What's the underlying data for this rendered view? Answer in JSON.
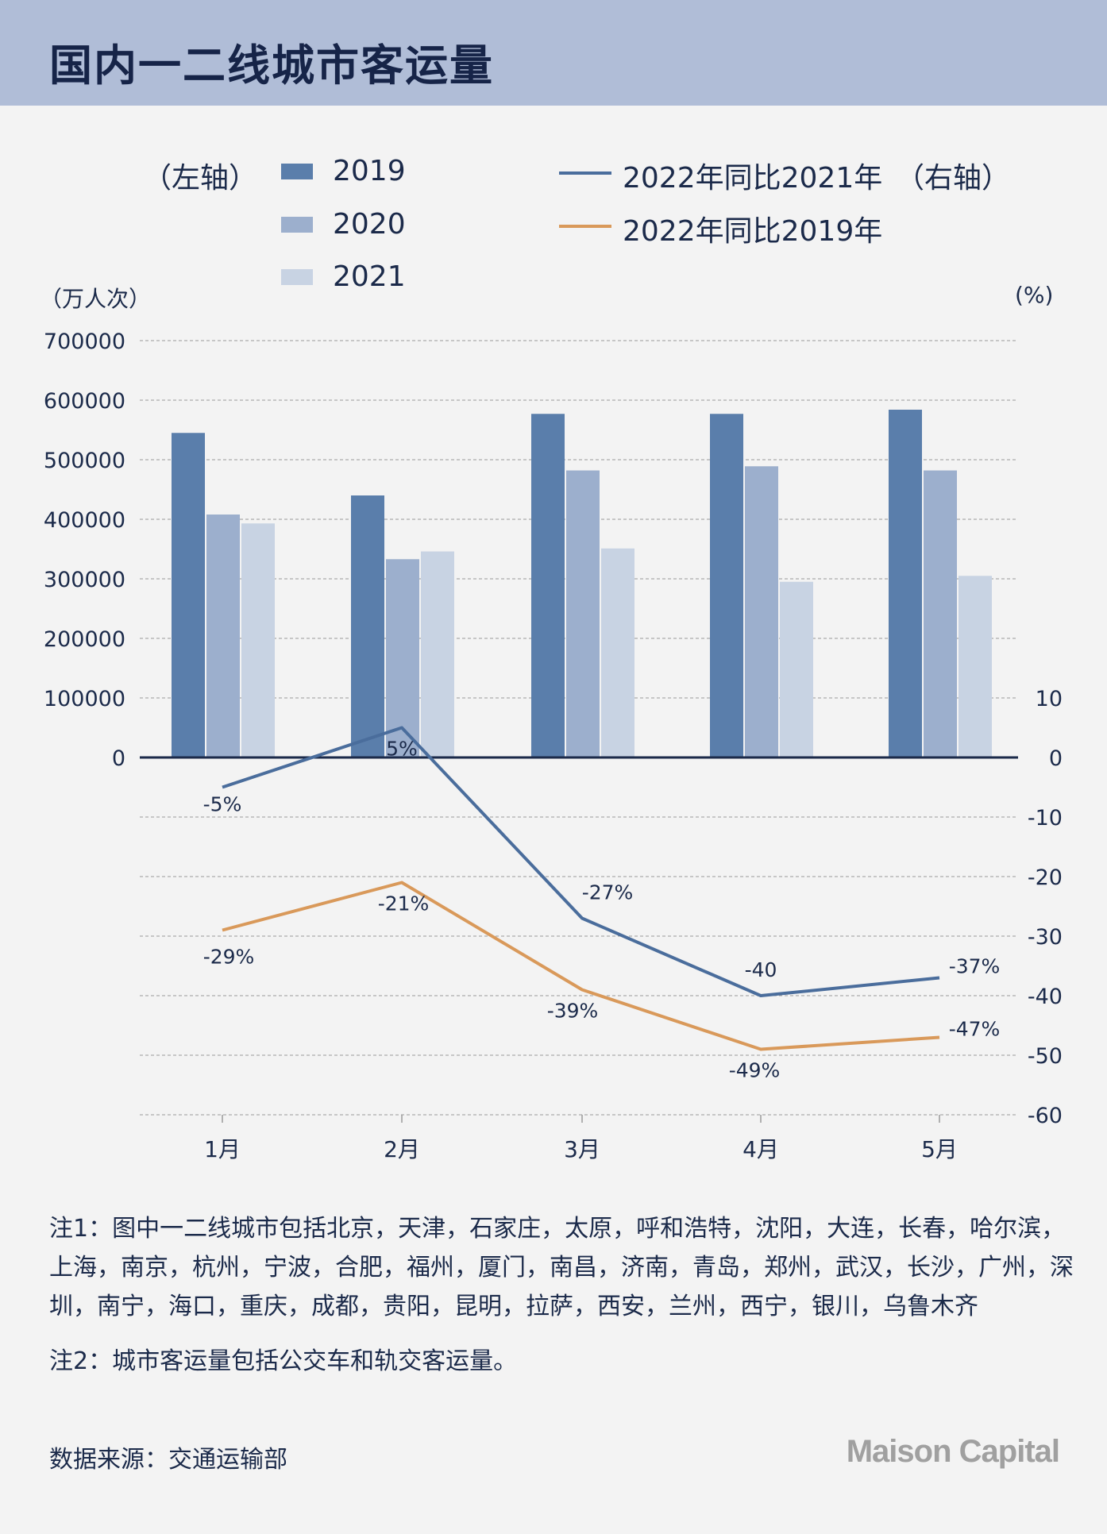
{
  "title": "国内一二线城市客运量",
  "legend": {
    "left_axis_label": "（左轴）",
    "right_axis_label": "（右轴）",
    "bars": [
      {
        "label": "2019",
        "color": "#5a7eab"
      },
      {
        "label": "2020",
        "color": "#9cafcd"
      },
      {
        "label": "2021",
        "color": "#c8d3e3"
      }
    ],
    "lines": [
      {
        "label": "2022年同比2021年",
        "color": "#4a6d9c"
      },
      {
        "label": "2022年同比2019年",
        "color": "#d9995a"
      }
    ]
  },
  "units": {
    "left": "（万人次）",
    "right": "(%)"
  },
  "chart_data": {
    "type": "bar",
    "categories": [
      "1月",
      "2月",
      "3月",
      "4月",
      "5月"
    ],
    "series": [
      {
        "name": "2019",
        "axis": "left",
        "type": "bar",
        "values": [
          545000,
          440000,
          577000,
          577000,
          584000
        ]
      },
      {
        "name": "2020",
        "axis": "left",
        "type": "bar",
        "values": [
          408000,
          333000,
          482000,
          489000,
          482000
        ]
      },
      {
        "name": "2021",
        "axis": "left",
        "type": "bar",
        "values": [
          393000,
          346000,
          351000,
          295000,
          305000
        ]
      },
      {
        "name": "2022年同比2021年",
        "axis": "right",
        "type": "line",
        "values": [
          -5,
          5,
          -27,
          -40,
          -37
        ],
        "labels": [
          "-5%",
          "5%",
          "-27%",
          "-40",
          "-37%"
        ]
      },
      {
        "name": "2022年同比2019年",
        "axis": "right",
        "type": "line",
        "values": [
          -29,
          -21,
          -39,
          -49,
          -47
        ],
        "labels": [
          "-29%",
          "-21%",
          "-39%",
          "-49%",
          "-47%"
        ]
      }
    ],
    "left_ticks": [
      "700000",
      "600000",
      "500000",
      "400000",
      "300000",
      "200000",
      "100000",
      "0"
    ],
    "right_ticks": [
      "10",
      "0",
      "-10",
      "-20",
      "-30",
      "-40",
      "-50",
      "-60"
    ],
    "ylim_left": [
      0,
      700000
    ],
    "ylim_right": [
      -60,
      10
    ],
    "grid": "dashed horizontal"
  },
  "notes": {
    "note1": "注1：图中一二线城市包括北京，天津，石家庄，太原，呼和浩特，沈阳，大连，长春，哈尔滨，上海，南京，杭州，宁波，合肥，福州，厦门，南昌，济南，青岛，郑州，武汉，长沙，广州，深圳，南宁，海口，重庆，成都，贵阳，昆明，拉萨，西安，兰州，西宁，银川，乌鲁木齐",
    "note2": "注2：城市客运量包括公交车和轨交客运量。"
  },
  "source": "数据来源：交通运输部",
  "logo": "Maison Capital"
}
